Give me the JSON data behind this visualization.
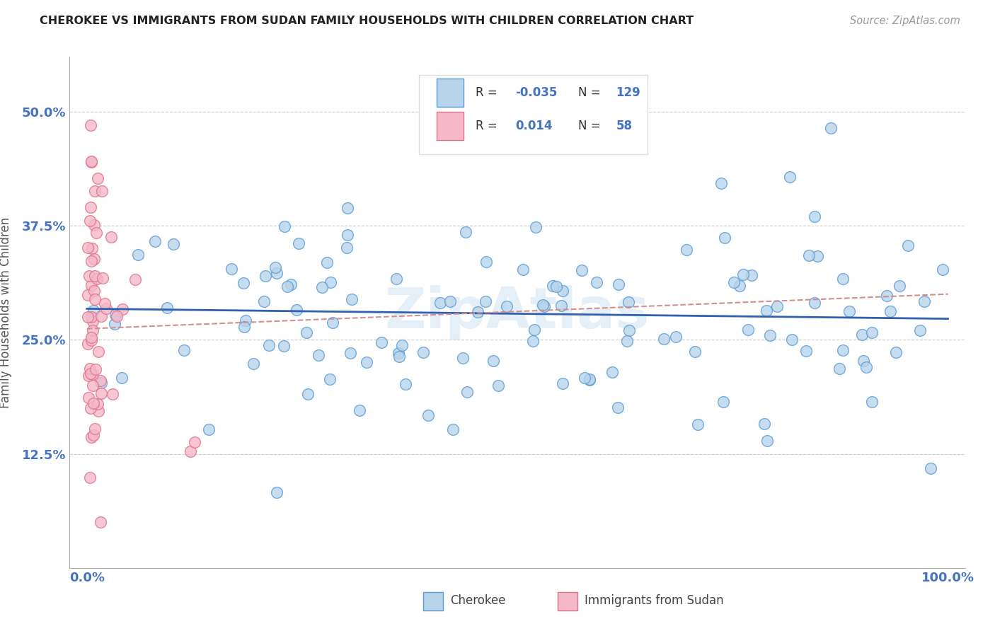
{
  "title": "CHEROKEE VS IMMIGRANTS FROM SUDAN FAMILY HOUSEHOLDS WITH CHILDREN CORRELATION CHART",
  "source": "Source: ZipAtlas.com",
  "ylabel": "Family Households with Children",
  "R1": "-0.035",
  "N1": "129",
  "R2": "0.014",
  "N2": "58",
  "color_cherokee_face": "#b8d4eb",
  "color_cherokee_edge": "#5b9bd5",
  "color_sudan_face": "#f4b8c8",
  "color_sudan_edge": "#e07090",
  "line_color_cherokee": "#3060b0",
  "line_color_sudan": "#d09090",
  "watermark_color": "#cce0f0",
  "background_color": "#ffffff",
  "ytick_vals": [
    0.125,
    0.25,
    0.375,
    0.5
  ],
  "ytick_labels": [
    "12.5%",
    "25.0%",
    "37.5%",
    "50.0%"
  ],
  "xlim": [
    -0.02,
    1.02
  ],
  "ylim": [
    0.0,
    0.56
  ],
  "cherokee_trend_y0": 0.284,
  "cherokee_trend_y1": 0.273,
  "sudan_trend_y0": 0.262,
  "sudan_trend_y1": 0.3
}
